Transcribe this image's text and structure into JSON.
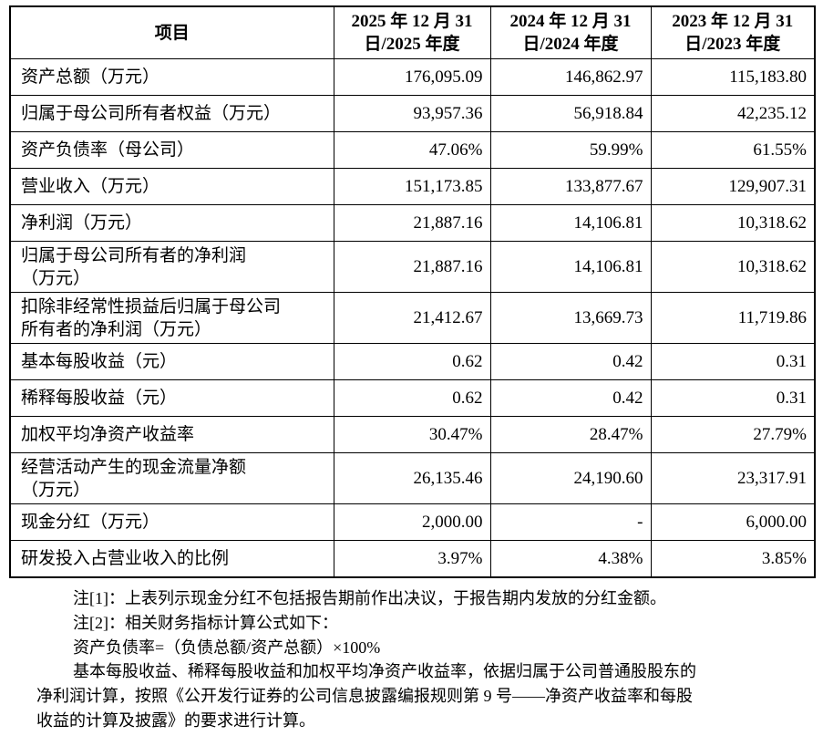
{
  "table": {
    "header": [
      [
        "项目"
      ],
      [
        "2025 年 12 月 31",
        "日/2025 年度"
      ],
      [
        "2024 年 12 月 31",
        "日/2024 年度"
      ],
      [
        "2023 年 12 月 31",
        "日/2023 年度"
      ]
    ],
    "rows": [
      {
        "label": [
          "资产总额（万元）"
        ],
        "values": [
          "176,095.09",
          "146,862.97",
          "115,183.80"
        ]
      },
      {
        "label": [
          "归属于母公司所有者权益（万元）"
        ],
        "values": [
          "93,957.36",
          "56,918.84",
          "42,235.12"
        ]
      },
      {
        "label": [
          "资产负债率（母公司）"
        ],
        "values": [
          "47.06%",
          "59.99%",
          "61.55%"
        ]
      },
      {
        "label": [
          "营业收入（万元）"
        ],
        "values": [
          "151,173.85",
          "133,877.67",
          "129,907.31"
        ]
      },
      {
        "label": [
          "净利润（万元）"
        ],
        "values": [
          "21,887.16",
          "14,106.81",
          "10,318.62"
        ]
      },
      {
        "label": [
          "归属于母公司所有者的净利润",
          "（万元）"
        ],
        "values": [
          "21,887.16",
          "14,106.81",
          "10,318.62"
        ]
      },
      {
        "label": [
          "扣除非经常性损益后归属于母公司",
          "所有者的净利润（万元）"
        ],
        "values": [
          "21,412.67",
          "13,669.73",
          "11,719.86"
        ]
      },
      {
        "label": [
          "基本每股收益（元）"
        ],
        "values": [
          "0.62",
          "0.42",
          "0.31"
        ]
      },
      {
        "label": [
          "稀释每股收益（元）"
        ],
        "values": [
          "0.62",
          "0.42",
          "0.31"
        ]
      },
      {
        "label": [
          "加权平均净资产收益率"
        ],
        "values": [
          "30.47%",
          "28.47%",
          "27.79%"
        ]
      },
      {
        "label": [
          "经营活动产生的现金流量净额",
          "（万元）"
        ],
        "values": [
          "26,135.46",
          "24,190.60",
          "23,317.91"
        ]
      },
      {
        "label": [
          "现金分红（万元）"
        ],
        "values": [
          "2,000.00",
          "-",
          "6,000.00"
        ]
      },
      {
        "label": [
          "研发投入占营业收入的比例"
        ],
        "values": [
          "3.97%",
          "4.38%",
          "3.85%"
        ]
      }
    ]
  },
  "notes": [
    [
      "注[1]：上表列示现金分红不包括报告期前作出决议，于报告期内发放的分红金额。"
    ],
    [
      "注[2]：相关财务指标计算公式如下："
    ],
    [
      "资产负债率=（负债总额/资产总额）×100%"
    ],
    [
      "基本每股收益、稀释每股收益和加权平均净资产收益率，依据归属于公司普通股股东的",
      "净利润计算，按照《公开发行证券的公司信息披露编报规则第 9 号——净资产收益率和每股",
      "收益的计算及披露》的要求进行计算。"
    ]
  ]
}
